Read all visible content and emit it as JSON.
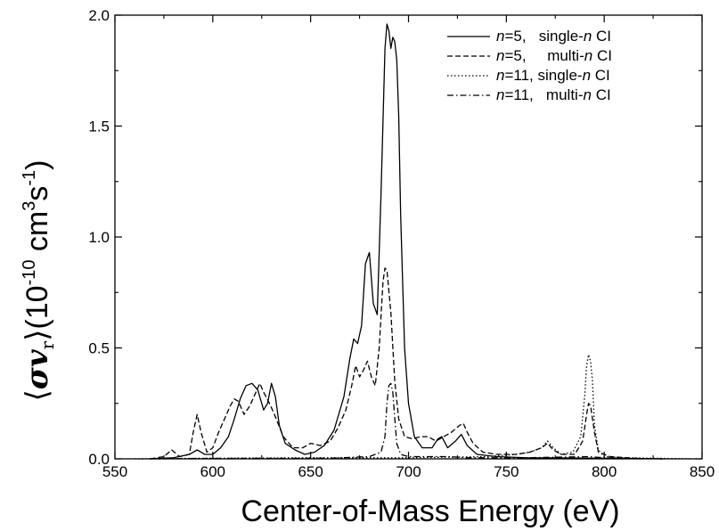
{
  "chart_data": {
    "type": "line",
    "xlabel": "Center-of-Mass Energy (eV)",
    "ylabel_parts": {
      "bracket_open": "⟨",
      "sigma": "σ",
      "v": "v",
      "sub": "r",
      "bracket_close": "⟩",
      "paren_open": "(10",
      "exp1": "-10",
      "mid": " cm",
      "exp2": "3",
      "s": "s",
      "exp3": "-1",
      "paren_close": ")"
    },
    "xlim": [
      550,
      850
    ],
    "ylim": [
      0,
      2.0
    ],
    "xticks": [
      "550",
      "600",
      "650",
      "700",
      "750",
      "800",
      "850"
    ],
    "yticks": [
      "0.0",
      "0.5",
      "1.0",
      "1.5",
      "2.0"
    ],
    "legend_position": "top-right",
    "series": [
      {
        "name": "n=5,   single-n CI",
        "legend": {
          "n_italic": "n",
          "a": "=5,   single-",
          "n2": "n",
          "b": " CI"
        },
        "dash": "",
        "points": [
          [
            568,
            0
          ],
          [
            580,
            0.005
          ],
          [
            588,
            0.02
          ],
          [
            592,
            0.04
          ],
          [
            596,
            0.02
          ],
          [
            600,
            0.02
          ],
          [
            604,
            0.05
          ],
          [
            608,
            0.1
          ],
          [
            611,
            0.18
          ],
          [
            614,
            0.27
          ],
          [
            617,
            0.33
          ],
          [
            620,
            0.34
          ],
          [
            623,
            0.31
          ],
          [
            626,
            0.22
          ],
          [
            628,
            0.25
          ],
          [
            630,
            0.34
          ],
          [
            632,
            0.28
          ],
          [
            634,
            0.15
          ],
          [
            637,
            0.07
          ],
          [
            642,
            0.04
          ],
          [
            647,
            0.02
          ],
          [
            652,
            0.03
          ],
          [
            657,
            0.06
          ],
          [
            662,
            0.13
          ],
          [
            667,
            0.28
          ],
          [
            670,
            0.45
          ],
          [
            672,
            0.54
          ],
          [
            674,
            0.52
          ],
          [
            676,
            0.6
          ],
          [
            678,
            0.88
          ],
          [
            680,
            0.93
          ],
          [
            682,
            0.7
          ],
          [
            684,
            0.65
          ],
          [
            686,
            1.2
          ],
          [
            688,
            1.85
          ],
          [
            689,
            1.96
          ],
          [
            690,
            1.93
          ],
          [
            691,
            1.85
          ],
          [
            692,
            1.9
          ],
          [
            693,
            1.88
          ],
          [
            694,
            1.8
          ],
          [
            695,
            1.55
          ],
          [
            696,
            1.1
          ],
          [
            698,
            0.5
          ],
          [
            700,
            0.25
          ],
          [
            703,
            0.1
          ],
          [
            707,
            0.05
          ],
          [
            712,
            0.05
          ],
          [
            715,
            0.09
          ],
          [
            717,
            0.1
          ],
          [
            720,
            0.05
          ],
          [
            724,
            0.08
          ],
          [
            727,
            0.11
          ],
          [
            730,
            0.06
          ],
          [
            735,
            0.02
          ],
          [
            745,
            0.01
          ],
          [
            760,
            0.005
          ],
          [
            800,
            0.003
          ],
          [
            830,
            0
          ]
        ]
      },
      {
        "name": "n=5,   multi-n CI",
        "legend": {
          "n_italic": "n",
          "a": "=5,     multi-",
          "n2": "n",
          "b": " CI"
        },
        "dash": "6,3",
        "points": [
          [
            568,
            0
          ],
          [
            575,
            0.01
          ],
          [
            579,
            0.04
          ],
          [
            583,
            0.01
          ],
          [
            588,
            0.02
          ],
          [
            590,
            0.12
          ],
          [
            592,
            0.2
          ],
          [
            594,
            0.12
          ],
          [
            597,
            0.03
          ],
          [
            600,
            0.05
          ],
          [
            603,
            0.12
          ],
          [
            606,
            0.18
          ],
          [
            609,
            0.24
          ],
          [
            611,
            0.27
          ],
          [
            613,
            0.26
          ],
          [
            616,
            0.2
          ],
          [
            619,
            0.24
          ],
          [
            622,
            0.3
          ],
          [
            624,
            0.34
          ],
          [
            626,
            0.3
          ],
          [
            629,
            0.25
          ],
          [
            632,
            0.19
          ],
          [
            636,
            0.1
          ],
          [
            641,
            0.05
          ],
          [
            646,
            0.05
          ],
          [
            650,
            0.07
          ],
          [
            655,
            0.06
          ],
          [
            660,
            0.08
          ],
          [
            664,
            0.14
          ],
          [
            668,
            0.22
          ],
          [
            671,
            0.33
          ],
          [
            673,
            0.42
          ],
          [
            675,
            0.37
          ],
          [
            677,
            0.4
          ],
          [
            679,
            0.44
          ],
          [
            681,
            0.37
          ],
          [
            683,
            0.33
          ],
          [
            685,
            0.5
          ],
          [
            687,
            0.8
          ],
          [
            688,
            0.86
          ],
          [
            689,
            0.85
          ],
          [
            691,
            0.66
          ],
          [
            693,
            0.35
          ],
          [
            695,
            0.18
          ],
          [
            698,
            0.1
          ],
          [
            702,
            0.09
          ],
          [
            706,
            0.1
          ],
          [
            710,
            0.1
          ],
          [
            714,
            0.08
          ],
          [
            718,
            0.1
          ],
          [
            722,
            0.12
          ],
          [
            726,
            0.15
          ],
          [
            728,
            0.16
          ],
          [
            730,
            0.12
          ],
          [
            733,
            0.07
          ],
          [
            738,
            0.03
          ],
          [
            745,
            0.02
          ],
          [
            755,
            0.02
          ],
          [
            762,
            0.03
          ],
          [
            768,
            0.05
          ],
          [
            771,
            0.07
          ],
          [
            774,
            0.04
          ],
          [
            778,
            0.02
          ],
          [
            785,
            0.02
          ],
          [
            789,
            0.08
          ],
          [
            791,
            0.2
          ],
          [
            792,
            0.25
          ],
          [
            793,
            0.24
          ],
          [
            795,
            0.12
          ],
          [
            797,
            0.03
          ],
          [
            803,
            0.01
          ],
          [
            820,
            0
          ]
        ]
      },
      {
        "name": "n=11, single-n CI",
        "legend": {
          "n_italic": "n",
          "a": "=11, single-",
          "n2": "n",
          "b": " CI"
        },
        "dash": "1.5,2.5",
        "points": [
          [
            560,
            0
          ],
          [
            600,
            0.003
          ],
          [
            650,
            0.005
          ],
          [
            700,
            0.005
          ],
          [
            740,
            0.01
          ],
          [
            755,
            0.02
          ],
          [
            762,
            0.03
          ],
          [
            768,
            0.05
          ],
          [
            771,
            0.08
          ],
          [
            774,
            0.05
          ],
          [
            778,
            0.02
          ],
          [
            784,
            0.03
          ],
          [
            788,
            0.1
          ],
          [
            790,
            0.28
          ],
          [
            791,
            0.42
          ],
          [
            792,
            0.47
          ],
          [
            793,
            0.44
          ],
          [
            794,
            0.35
          ],
          [
            795,
            0.15
          ],
          [
            797,
            0.04
          ],
          [
            800,
            0.01
          ],
          [
            810,
            0.005
          ],
          [
            845,
            0
          ]
        ]
      },
      {
        "name": "n=11,   multi-n CI",
        "legend": {
          "n_italic": "n",
          "a": "=11,   multi-",
          "n2": "n",
          "b": " CI"
        },
        "dash": "7,3,1.5,3",
        "points": [
          [
            568,
            0
          ],
          [
            600,
            0.002
          ],
          [
            660,
            0.003
          ],
          [
            680,
            0.01
          ],
          [
            686,
            0.03
          ],
          [
            688,
            0.1
          ],
          [
            689,
            0.25
          ],
          [
            690,
            0.33
          ],
          [
            691,
            0.34
          ],
          [
            692,
            0.3
          ],
          [
            693,
            0.18
          ],
          [
            694,
            0.07
          ],
          [
            696,
            0.02
          ],
          [
            700,
            0.01
          ],
          [
            720,
            0.01
          ],
          [
            730,
            0.005
          ],
          [
            760,
            0.005
          ],
          [
            792,
            0.01
          ],
          [
            800,
            0.005
          ],
          [
            830,
            0
          ]
        ]
      }
    ]
  }
}
